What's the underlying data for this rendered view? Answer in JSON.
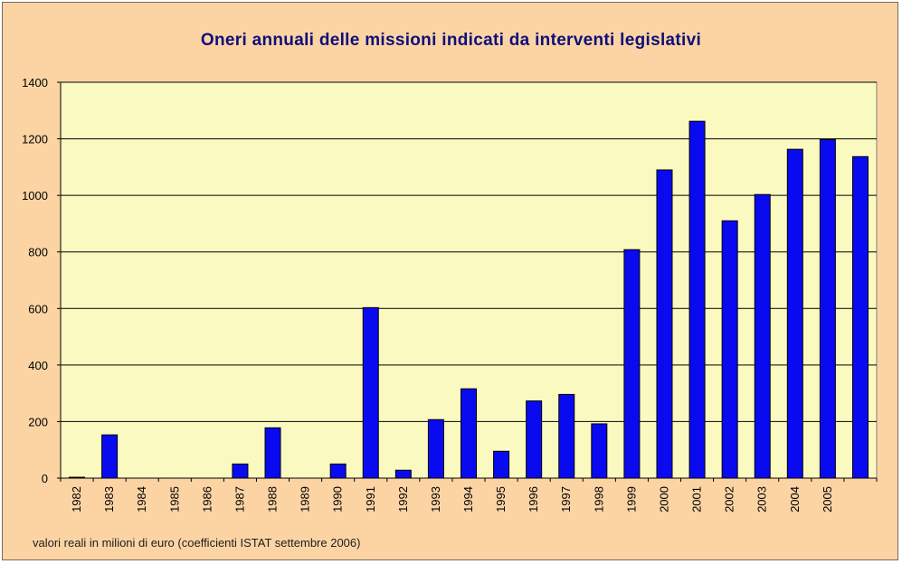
{
  "chart_data": {
    "type": "bar",
    "title": "Oneri annuali delle missioni indicati da interventi legislativi",
    "xlabel": "",
    "ylabel": "",
    "footnote": "valori reali in milioni di euro (coefficienti ISTAT settembre 2006)",
    "ylim": [
      0,
      1400
    ],
    "yticks": [
      "0",
      "200",
      "400",
      "600",
      "800",
      "1000",
      "1200",
      "1400"
    ],
    "grid": true,
    "legend": "none",
    "categories": [
      "1982",
      "1983",
      "1984",
      "1985",
      "1986",
      "1987",
      "1988",
      "1989",
      "1990",
      "1991",
      "1992",
      "1993",
      "1994",
      "1995",
      "1996",
      "1997",
      "1998",
      "1999",
      "2000",
      "2001",
      "2002",
      "2003",
      "2004",
      "2005",
      ""
    ],
    "values": [
      2,
      153,
      0,
      0,
      0,
      50,
      178,
      0,
      50,
      603,
      28,
      207,
      316,
      95,
      273,
      296,
      192,
      808,
      1090,
      1262,
      910,
      1003,
      1163,
      1197,
      1137
    ],
    "colors": {
      "bar": "#0a0af0",
      "bar_stroke": "#000000",
      "plot_bg": "#fafac0",
      "frame_bg": "#fcd4a4",
      "title": "#0f0f7a"
    }
  }
}
